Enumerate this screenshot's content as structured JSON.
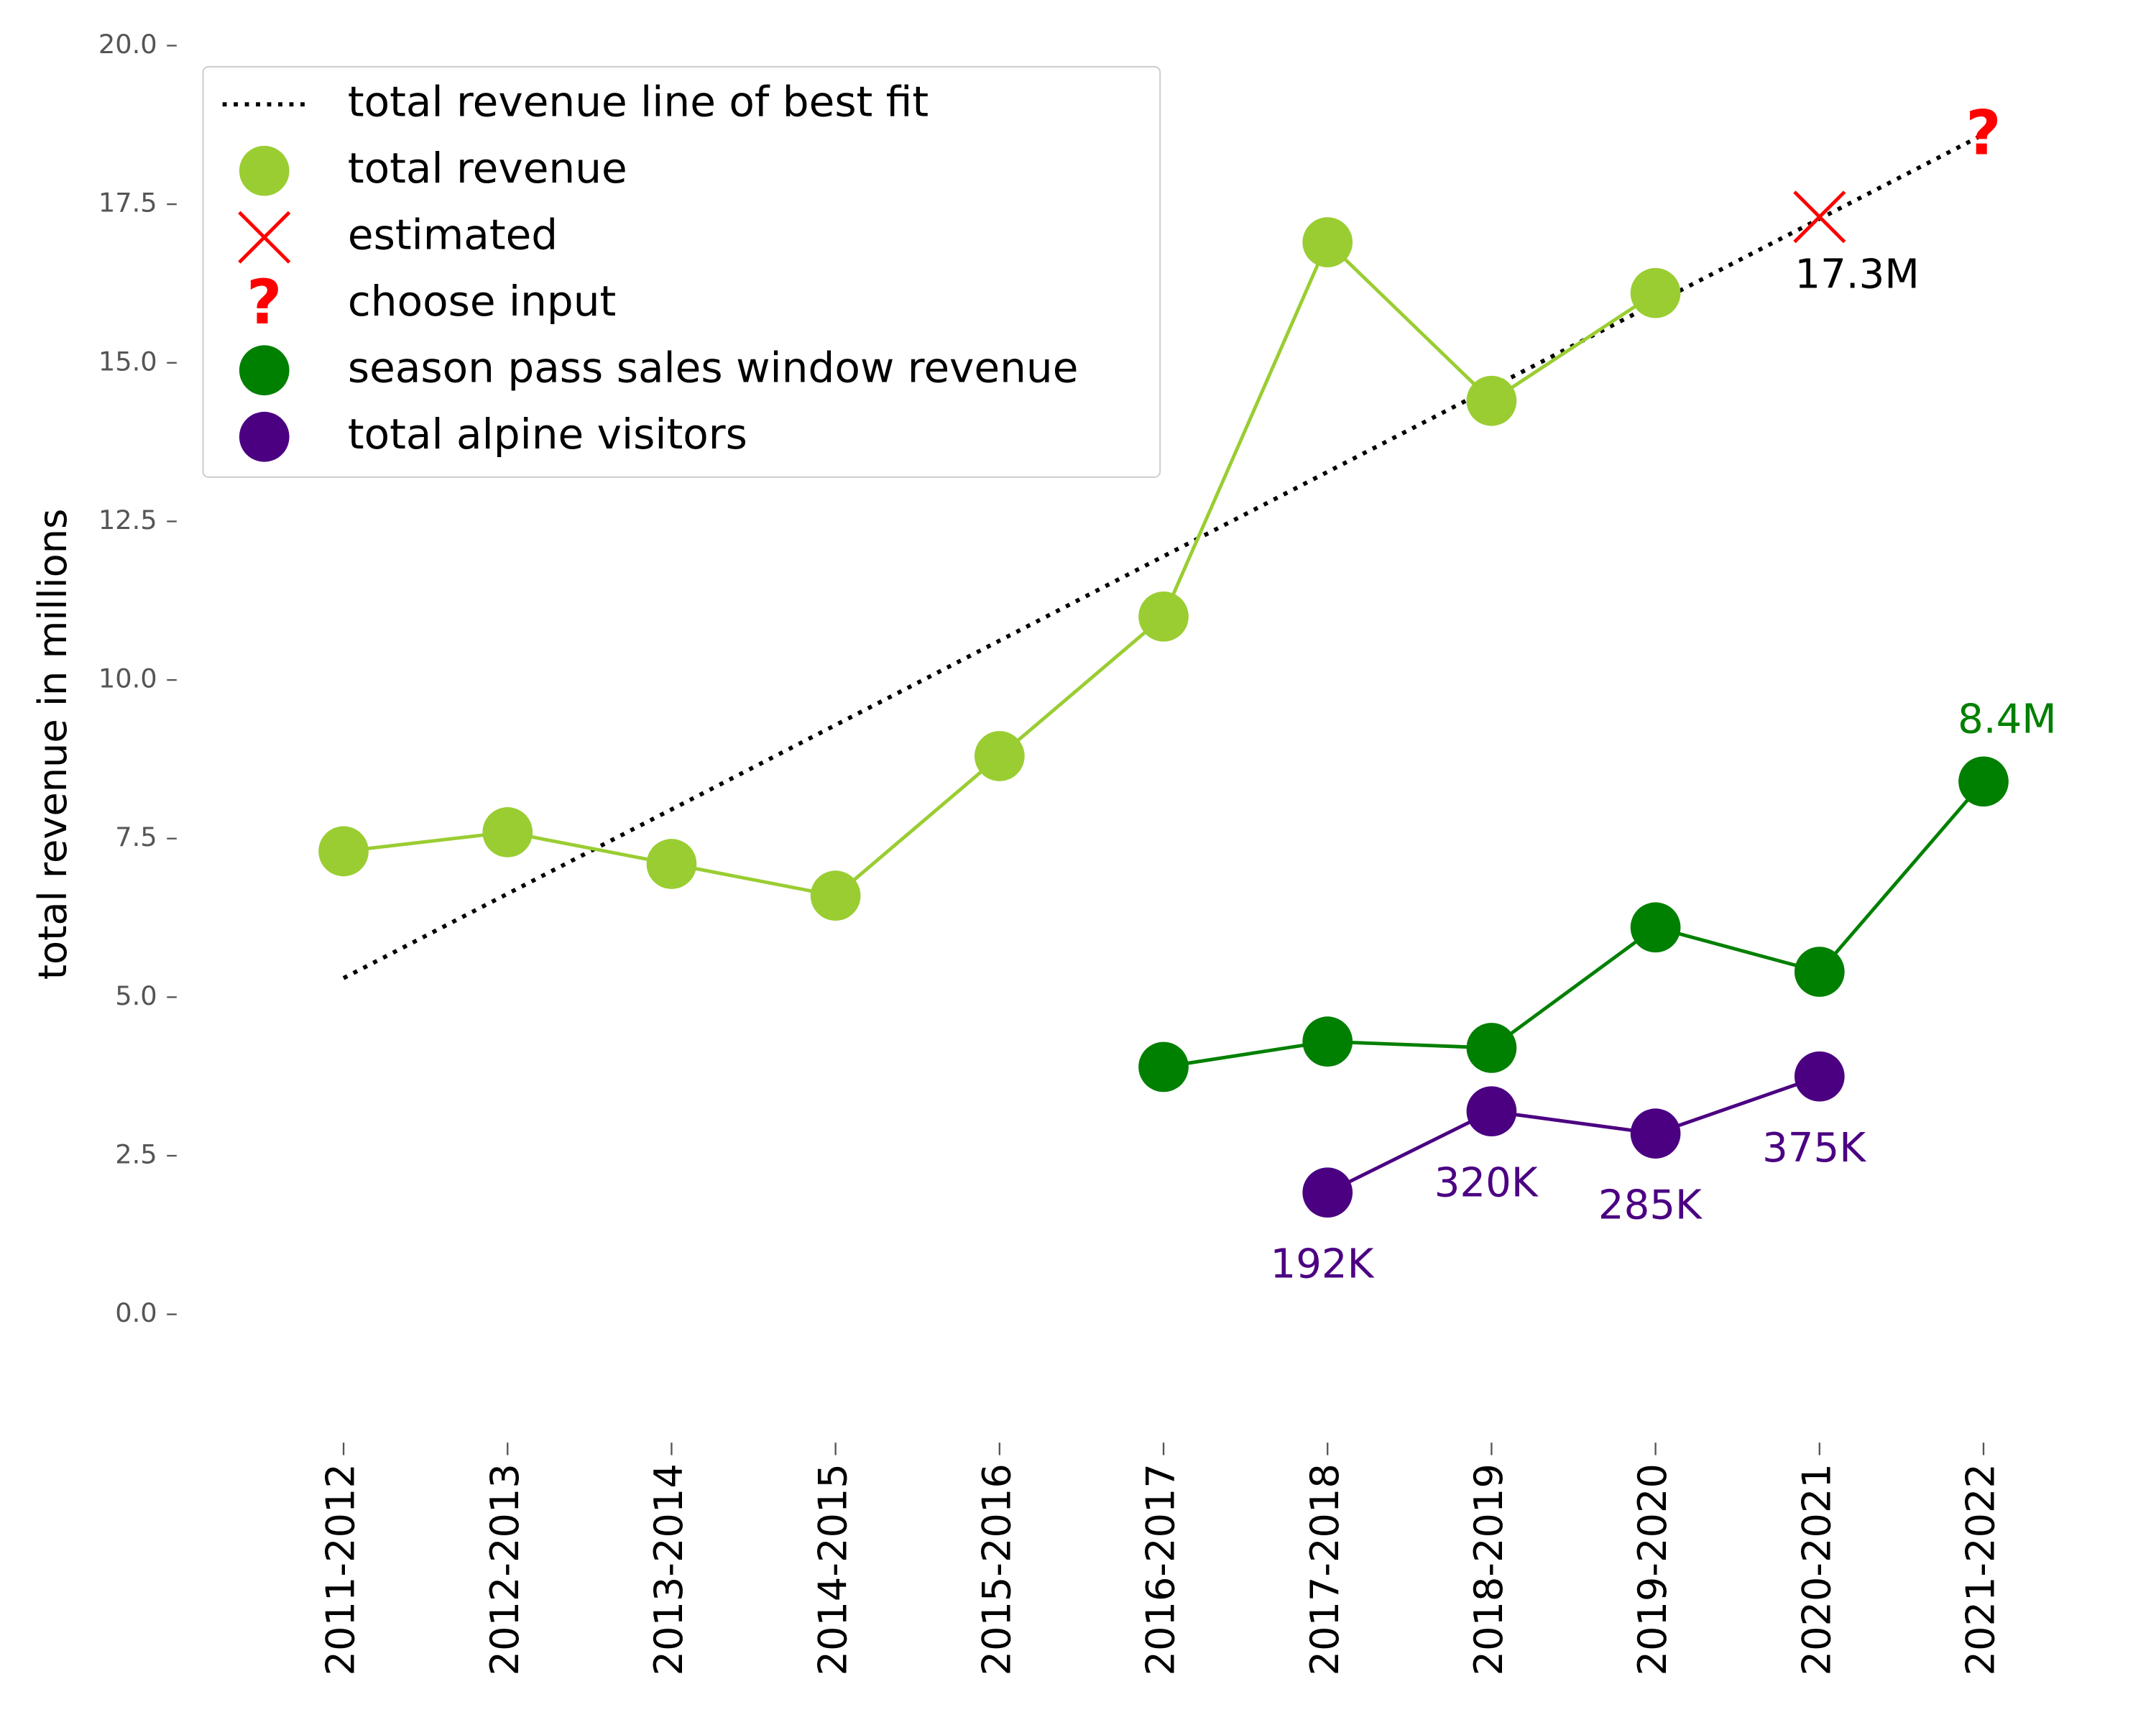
{
  "chart_data": {
    "type": "line",
    "ylabel": "total revenue in millions",
    "categories": [
      "2011-2012",
      "2012-2013",
      "2013-2014",
      "2014-2015",
      "2015-2016",
      "2016-2017",
      "2017-2018",
      "2018-2019",
      "2019-2020",
      "2020-2021",
      "2021-2022"
    ],
    "ylim": [
      -2,
      20.5
    ],
    "yticks": [
      {
        "value": 0,
        "label": "0.0"
      },
      2.5,
      {
        "value": 5,
        "label": "5.0"
      },
      7.5,
      {
        "value": 10,
        "label": "10.0"
      },
      12.5,
      {
        "value": 15,
        "label": "15.0"
      },
      17.5,
      {
        "value": 20,
        "label": "20.0"
      }
    ],
    "grid": false,
    "legend": "upper left",
    "series": [
      {
        "name": "total revenue line of best fit",
        "color": "#000000",
        "style": "dotted",
        "values": [
          5.3,
          6.63,
          7.96,
          9.29,
          10.62,
          11.95,
          13.28,
          14.61,
          15.94,
          17.27,
          18.6
        ]
      },
      {
        "name": "total revenue",
        "color": "#9acd32",
        "marker": "o",
        "values": [
          7.3,
          7.6,
          7.1,
          6.6,
          8.8,
          11.0,
          16.9,
          14.4,
          16.1,
          null,
          null
        ]
      },
      {
        "name": "estimated",
        "color": "#ff0000",
        "marker": "x",
        "values": [
          null,
          null,
          null,
          null,
          null,
          null,
          null,
          null,
          null,
          17.3,
          null
        ],
        "value_labels": [
          null,
          null,
          null,
          null,
          null,
          null,
          null,
          null,
          null,
          "17.3M",
          null
        ]
      },
      {
        "name": "choose input",
        "color": "#ff0000",
        "marker": "?",
        "values": [
          null,
          null,
          null,
          null,
          null,
          null,
          null,
          null,
          null,
          null,
          18.6
        ]
      },
      {
        "name": "season pass sales window revenue",
        "color": "#008000",
        "marker": "o",
        "values": [
          null,
          null,
          null,
          null,
          null,
          3.9,
          4.3,
          4.2,
          6.1,
          5.4,
          8.4
        ],
        "value_labels": [
          null,
          null,
          null,
          null,
          null,
          null,
          null,
          null,
          null,
          null,
          "8.4M"
        ]
      },
      {
        "name": "total alpine visitors",
        "color": "#4b0082",
        "marker": "o",
        "values": [
          null,
          null,
          null,
          null,
          null,
          null,
          1.92,
          3.2,
          2.85,
          3.75,
          null
        ],
        "value_labels": [
          null,
          null,
          null,
          null,
          null,
          null,
          "192K",
          "320K",
          "285K",
          "375K",
          null
        ]
      }
    ]
  }
}
